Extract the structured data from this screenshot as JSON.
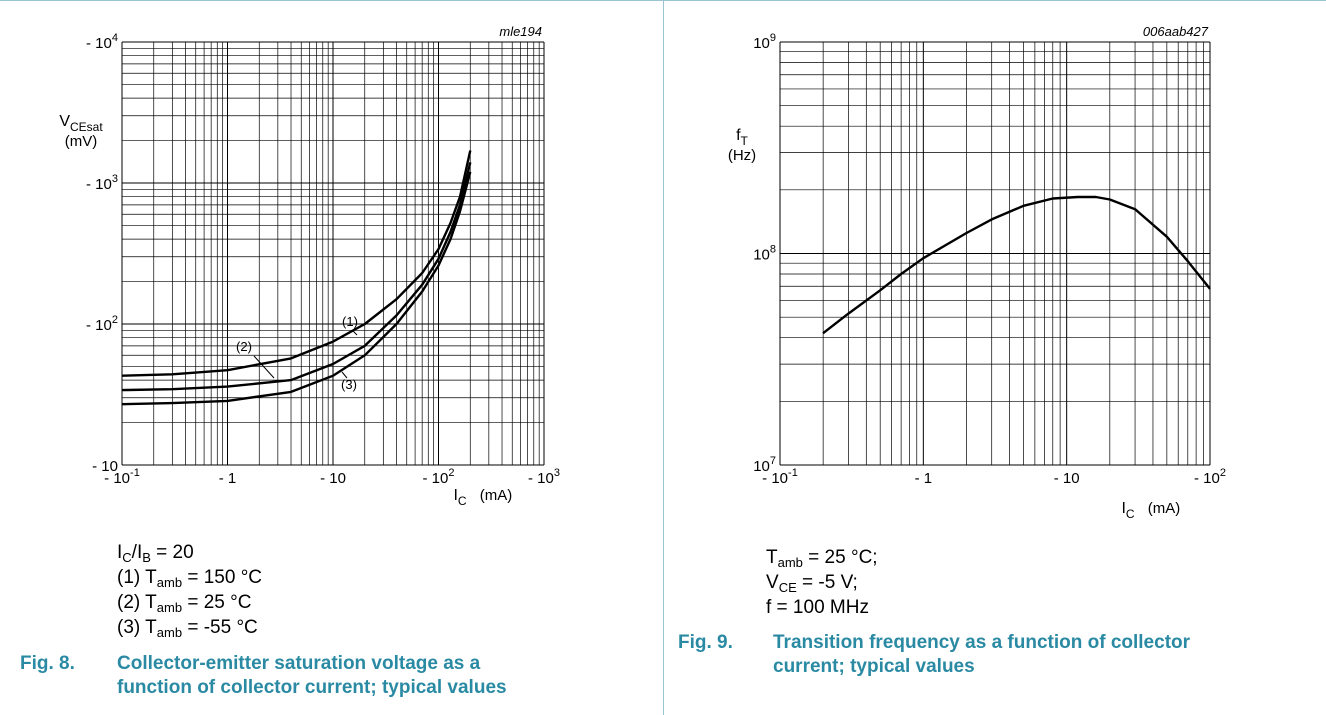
{
  "chart_data": [
    {
      "type": "line",
      "code": "mle194",
      "scale": "log-log",
      "xlim": [
        -0.1,
        -1000
      ],
      "ylim": [
        -10,
        -10000
      ],
      "x_ticks": [
        "- 10-1",
        "- 1",
        "- 10",
        "- 102",
        "- 103"
      ],
      "y_ticks": [
        "- 10",
        "- 102",
        "- 103",
        "- 104"
      ],
      "xlabel": "IC (mA)",
      "ylabel": [
        "VCEsat",
        "(mV)"
      ],
      "grid": true,
      "series": [
        {
          "name": "(1)",
          "x": [
            -0.1,
            -0.3,
            -1,
            -4,
            -10,
            -20,
            -40,
            -70,
            -100,
            -130,
            -160,
            -200
          ],
          "y": [
            -43,
            -44,
            -47,
            -57,
            -75,
            -100,
            -150,
            -230,
            -340,
            -520,
            -800,
            -1700
          ]
        },
        {
          "name": "(2)",
          "x": [
            -0.1,
            -0.3,
            -1,
            -4,
            -10,
            -20,
            -40,
            -70,
            -100,
            -130,
            -160,
            -200
          ],
          "y": [
            -34,
            -34.5,
            -36,
            -40,
            -52,
            -70,
            -115,
            -190,
            -290,
            -450,
            -700,
            -1400
          ]
        },
        {
          "name": "(3)",
          "x": [
            -0.1,
            -0.3,
            -1,
            -4,
            -10,
            -20,
            -40,
            -70,
            -100,
            -130,
            -160,
            -200
          ],
          "y": [
            -27,
            -27.5,
            -28.5,
            -33,
            -43,
            -60,
            -100,
            -170,
            -260,
            -400,
            -630,
            -1200
          ]
        }
      ],
      "annotations": [
        "(1)",
        "(2)",
        "(3)"
      ]
    },
    {
      "type": "line",
      "code": "006aab427",
      "scale": "log-log",
      "xlim": [
        -0.1,
        -100
      ],
      "ylim": [
        10000000,
        1000000000
      ],
      "x_ticks": [
        "- 10-1",
        "- 1",
        "- 10",
        "- 102"
      ],
      "y_ticks": [
        "107",
        "108",
        "109"
      ],
      "xlabel": "IC (mA)",
      "ylabel": [
        "fT",
        "(Hz)"
      ],
      "grid": true,
      "series": [
        {
          "x": [
            -0.2,
            -0.3,
            -0.5,
            -0.7,
            -1,
            -2,
            -3,
            -5,
            -8,
            -12,
            -16,
            -20,
            -30,
            -50,
            -70,
            -100
          ],
          "y": [
            42000000,
            52000000,
            67000000,
            80000000,
            95000000,
            125000000,
            145000000,
            168000000,
            182000000,
            185000000,
            185000000,
            180000000,
            162000000,
            120000000,
            92000000,
            68000000
          ]
        }
      ]
    }
  ],
  "left_conditions": {
    "l1": {
      "a": "I",
      "a_sub": "C",
      "b": "/I",
      "b_sub": "B",
      "c": " = 20"
    },
    "l2": {
      "pre": "(1) T",
      "sub": "amb",
      "post": " = 150 °C"
    },
    "l3": {
      "pre": "(2) T",
      "sub": "amb",
      "post": " = 25 °C"
    },
    "l4": {
      "pre": "(3) T",
      "sub": "amb",
      "post": " = -55 °C"
    }
  },
  "right_conditions": {
    "l1": {
      "pre": "T",
      "sub": "amb",
      "post": " = 25 °C;"
    },
    "l2": {
      "pre": "V",
      "sub": "CE",
      "post": " = -5 V;"
    },
    "l3": {
      "text": "f = 100 MHz"
    }
  },
  "captions": {
    "fig8": {
      "num": "Fig. 8.",
      "line1": "Collector-emitter saturation voltage as a",
      "line2": "function of collector current; typical values"
    },
    "fig9": {
      "num": "Fig. 9.",
      "line1": "Transition frequency as a function of collector",
      "line2": "current; typical values"
    }
  },
  "colors": {
    "frame": "#9ac4d4",
    "caption": "#2a8aa3",
    "ink": "#000000"
  }
}
